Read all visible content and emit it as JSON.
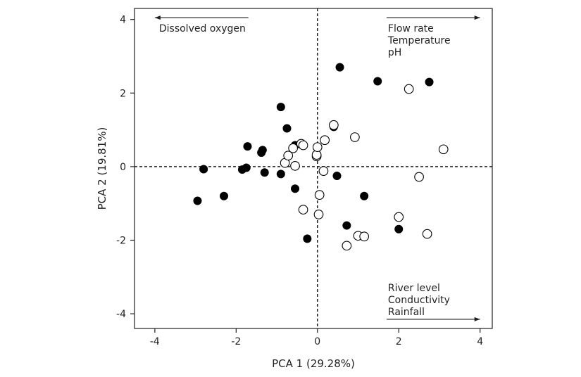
{
  "chart_data": {
    "type": "scatter",
    "title": "",
    "xlabel": "PCA 1 (29.28%)",
    "ylabel": "PCA 2 (19.81%)",
    "xlim": [
      -4.5,
      4.3
    ],
    "ylim": [
      -4.4,
      4.3
    ],
    "xticks": [
      -4,
      -2,
      0,
      2,
      4
    ],
    "yticks": [
      -4,
      -2,
      0,
      2,
      4
    ],
    "xtick_labels": [
      "-4",
      "-2",
      "0",
      "2",
      "4"
    ],
    "ytick_labels": [
      "-4",
      "-2",
      "0",
      "2",
      "4"
    ],
    "grid": false,
    "reference_lines": {
      "x": 0,
      "y": 0,
      "style": "dashed"
    },
    "colors": {
      "filled": "#000000",
      "open_stroke": "#000000",
      "open_fill": "#ffffff",
      "text": "#231f20"
    },
    "annotations": [
      {
        "direction": "left",
        "arrow": {
          "from": [
            -1.7,
            4.05
          ],
          "to": [
            -4.0,
            4.05
          ]
        },
        "lines": [
          "Dissolved oxygen"
        ]
      },
      {
        "direction": "right",
        "arrow": {
          "from": [
            1.7,
            4.05
          ],
          "to": [
            4.0,
            4.05
          ]
        },
        "lines": [
          "Flow rate",
          "Temperature",
          "pH"
        ]
      },
      {
        "direction": "right",
        "arrow": {
          "from": [
            1.7,
            -4.15
          ],
          "to": [
            4.0,
            -4.15
          ]
        },
        "lines": [
          "River level",
          "Conductivity",
          "Rainfall"
        ]
      }
    ],
    "series": [
      {
        "marker": "filled-circle",
        "points": [
          [
            -2.95,
            -0.93
          ],
          [
            -2.8,
            -0.07
          ],
          [
            -2.3,
            -0.8
          ],
          [
            -1.85,
            -0.08
          ],
          [
            -1.75,
            -0.03
          ],
          [
            -1.72,
            0.55
          ],
          [
            -1.38,
            0.38
          ],
          [
            -1.35,
            0.45
          ],
          [
            -1.3,
            -0.16
          ],
          [
            -0.9,
            1.62
          ],
          [
            -0.9,
            -0.2
          ],
          [
            -0.75,
            1.04
          ],
          [
            -0.55,
            0.58
          ],
          [
            -0.55,
            -0.6
          ],
          [
            -0.25,
            -1.96
          ],
          [
            0.4,
            1.08
          ],
          [
            0.48,
            -0.25
          ],
          [
            0.55,
            2.7
          ],
          [
            0.72,
            -1.6
          ],
          [
            1.15,
            -0.8
          ],
          [
            1.48,
            2.32
          ],
          [
            2.0,
            -1.7
          ],
          [
            2.75,
            2.3
          ]
        ]
      },
      {
        "marker": "open-circle",
        "points": [
          [
            -0.8,
            0.1
          ],
          [
            -0.72,
            0.3
          ],
          [
            -0.6,
            0.5
          ],
          [
            -0.55,
            0.02
          ],
          [
            -0.4,
            0.62
          ],
          [
            -0.35,
            0.58
          ],
          [
            -0.35,
            -1.17
          ],
          [
            -0.02,
            0.28
          ],
          [
            -0.02,
            0.32
          ],
          [
            0.0,
            0.53
          ],
          [
            0.03,
            -1.3
          ],
          [
            0.05,
            -0.77
          ],
          [
            0.15,
            -0.12
          ],
          [
            0.18,
            0.72
          ],
          [
            0.4,
            1.13
          ],
          [
            0.72,
            -2.15
          ],
          [
            0.92,
            0.8
          ],
          [
            1.0,
            -1.88
          ],
          [
            1.15,
            -1.9
          ],
          [
            2.0,
            -1.37
          ],
          [
            2.25,
            2.11
          ],
          [
            2.5,
            -0.28
          ],
          [
            2.7,
            -1.83
          ],
          [
            3.1,
            0.47
          ]
        ]
      }
    ]
  }
}
